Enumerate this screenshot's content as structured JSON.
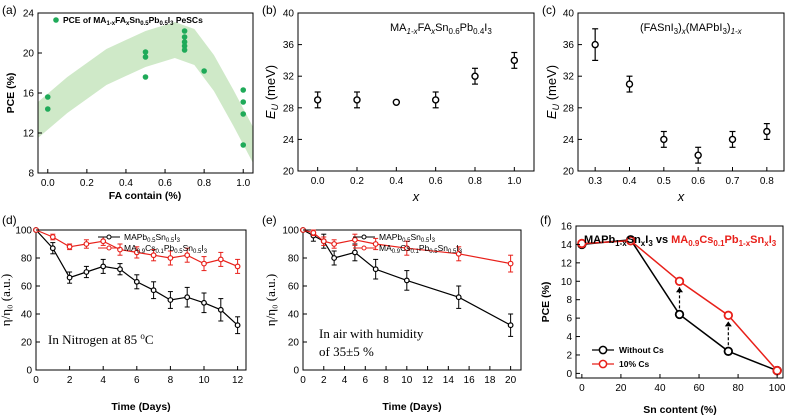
{
  "chart_data": [
    {
      "panel": "(a)",
      "type": "scatter",
      "title": "",
      "legend_label": "PCE of MA1-xFAxSn0.5Pb0.5I3 PeSCs",
      "legend_main": "PCE of MA",
      "legend_sub1": "1-x",
      "legend_mid1": "FA",
      "legend_sub2": "x",
      "legend_mid2": "Sn",
      "legend_sub3": "0.5",
      "legend_mid3": "Pb",
      "legend_sub4": "0.5",
      "legend_mid4": "I",
      "legend_sub5": "3",
      "legend_end": " PeSCs",
      "xlabel": "FA contain (%)",
      "ylabel": "PCE (%)",
      "xlim": [
        -0.05,
        1.05
      ],
      "ylim": [
        8,
        24
      ],
      "xticks": [
        "0.0",
        "0.2",
        "0.4",
        "0.6",
        "0.8",
        "1.0"
      ],
      "yticks": [
        "8",
        "12",
        "16",
        "20",
        "24"
      ],
      "color": "#1faa59",
      "band_color": "#cfe9c8",
      "points": [
        {
          "x": 0.0,
          "y": 15.6
        },
        {
          "x": 0.0,
          "y": 14.4
        },
        {
          "x": 0.5,
          "y": 20.1
        },
        {
          "x": 0.5,
          "y": 19.6
        },
        {
          "x": 0.5,
          "y": 17.6
        },
        {
          "x": 0.7,
          "y": 22.2
        },
        {
          "x": 0.7,
          "y": 21.6
        },
        {
          "x": 0.7,
          "y": 21.1
        },
        {
          "x": 0.7,
          "y": 20.7
        },
        {
          "x": 0.7,
          "y": 20.3
        },
        {
          "x": 0.8,
          "y": 18.2
        },
        {
          "x": 1.0,
          "y": 16.3
        },
        {
          "x": 1.0,
          "y": 15.1
        },
        {
          "x": 1.0,
          "y": 13.9
        },
        {
          "x": 1.0,
          "y": 10.8
        }
      ],
      "band_center": [
        {
          "x": -0.05,
          "y": 13.3
        },
        {
          "x": 0.1,
          "y": 15.8
        },
        {
          "x": 0.3,
          "y": 18.6
        },
        {
          "x": 0.5,
          "y": 20.4
        },
        {
          "x": 0.65,
          "y": 21.3
        },
        {
          "x": 0.75,
          "y": 20.6
        },
        {
          "x": 0.85,
          "y": 18.0
        },
        {
          "x": 0.95,
          "y": 14.5
        },
        {
          "x": 1.05,
          "y": 10.8
        }
      ],
      "band_halfwidth": 1.8
    },
    {
      "panel": "(b)",
      "type": "scatter",
      "title": "MA1-xFAxSn0.6Pb0.4I3",
      "title_main": "MA",
      "title_sub1": "1-x",
      "title_mid1": "FA",
      "title_sub2": "x",
      "title_mid2": "Sn",
      "title_sub3": "0.6",
      "title_mid3": "Pb",
      "title_sub4": "0.4",
      "title_mid4": "I",
      "title_sub5": "3",
      "xlabel": "x",
      "ylabel_main": "E",
      "ylabel_sub": "U",
      "ylabel_unit": " (meV)",
      "xlim": [
        -0.1,
        1.1
      ],
      "ylim": [
        20,
        40
      ],
      "xticks": [
        "0.0",
        "0.2",
        "0.4",
        "0.6",
        "0.8",
        "1.0"
      ],
      "yticks": [
        "20",
        "24",
        "28",
        "32",
        "36",
        "40"
      ],
      "points": [
        {
          "x": 0.0,
          "y": 29.0,
          "err": 1.0
        },
        {
          "x": 0.2,
          "y": 29.0,
          "err": 1.0
        },
        {
          "x": 0.4,
          "y": 28.7,
          "err": 0
        },
        {
          "x": 0.6,
          "y": 29.0,
          "err": 1.0
        },
        {
          "x": 0.8,
          "y": 32.0,
          "err": 1.0
        },
        {
          "x": 1.0,
          "y": 34.0,
          "err": 1.0
        }
      ]
    },
    {
      "panel": "(c)",
      "type": "scatter",
      "title": "(FASnI3)x(MAPbI3)1-x",
      "title_main": "(FASnI",
      "title_sub1": "3",
      "title_mid1": ")",
      "title_sub2": "x",
      "title_mid2": "(MAPbI",
      "title_sub3": "3",
      "title_mid3": ")",
      "title_sub4": "1-x",
      "xlabel": "x",
      "ylabel_main": "E",
      "ylabel_sub": "U",
      "ylabel_unit": " (meV)",
      "xlim": [
        0.25,
        0.85
      ],
      "ylim": [
        20,
        40
      ],
      "xticks": [
        "0.3",
        "0.4",
        "0.5",
        "0.6",
        "0.7",
        "0.8"
      ],
      "yticks": [
        "20",
        "24",
        "28",
        "32",
        "36",
        "40"
      ],
      "points": [
        {
          "x": 0.3,
          "y": 36.0,
          "err": 2.0
        },
        {
          "x": 0.4,
          "y": 31.0,
          "err": 1.0
        },
        {
          "x": 0.5,
          "y": 24.0,
          "err": 1.0
        },
        {
          "x": 0.6,
          "y": 22.0,
          "err": 1.0
        },
        {
          "x": 0.7,
          "y": 24.0,
          "err": 1.0
        },
        {
          "x": 0.8,
          "y": 25.0,
          "err": 1.0
        }
      ]
    },
    {
      "panel": "(d)",
      "type": "line",
      "xlabel": "Time (Days)",
      "ylabel": "η/η₀ (a.u.)",
      "xlim": [
        0,
        12.5
      ],
      "ylim": [
        0,
        100
      ],
      "xticks": [
        "0",
        "2",
        "4",
        "6",
        "8",
        "10",
        "12"
      ],
      "yticks": [
        "0",
        "20",
        "40",
        "60",
        "80",
        "100"
      ],
      "annotation": "In Nitrogen at 85 °C",
      "annotation_main": "In Nitrogen at 85 ",
      "annotation_sup": "o",
      "annotation_end": "C",
      "series": [
        {
          "name": "MAPb0.5Sn0.5I3",
          "legend_main": "MAPb",
          "legend_sub1": "0.5",
          "legend_mid1": "Sn",
          "legend_sub2": "0.5",
          "legend_mid2": "I",
          "legend_sub3": "3",
          "color": "#000000",
          "x": [
            0,
            1,
            2,
            3,
            4,
            5,
            6,
            7,
            8,
            9,
            10,
            11,
            12
          ],
          "y": [
            100,
            87,
            66,
            70,
            74,
            72,
            63,
            57,
            50,
            52,
            48,
            43,
            32
          ],
          "err": [
            0,
            4,
            4,
            4,
            5,
            4,
            5,
            6,
            6,
            7,
            7,
            8,
            6
          ]
        },
        {
          "name": "MA0.9Cs0.1Pb0.5Sn0.5I3",
          "legend_main": "MA",
          "legend_sub1": "0.9",
          "legend_mid1": "Cs",
          "legend_sub2": "0.1",
          "legend_mid2": "Pb",
          "legend_sub3": "0.5",
          "legend_mid3": "Sn",
          "legend_sub4": "0.5",
          "legend_mid4": "I",
          "legend_sub5": "3",
          "color": "#e8201a",
          "x": [
            0,
            1,
            2,
            3,
            4,
            5,
            6,
            7,
            8,
            9,
            10,
            11,
            12
          ],
          "y": [
            100,
            95,
            88,
            90,
            92,
            86,
            84,
            82,
            80,
            82,
            76,
            79,
            74
          ],
          "err": [
            0,
            2,
            2,
            3,
            3,
            4,
            4,
            4,
            5,
            5,
            5,
            5,
            5
          ]
        }
      ]
    },
    {
      "panel": "(e)",
      "type": "line",
      "xlabel": "Time (Days)",
      "ylabel": "η/η₀ (a.u.)",
      "xlim": [
        0,
        21
      ],
      "ylim": [
        0,
        100
      ],
      "xticks": [
        "0",
        "2",
        "4",
        "6",
        "8",
        "10",
        "12",
        "14",
        "16",
        "18",
        "20"
      ],
      "yticks": [
        "0",
        "20",
        "40",
        "60",
        "80",
        "100"
      ],
      "annotation_line1": "In air with humidity",
      "annotation_line2": "of 35±5 %",
      "series": [
        {
          "name": "MAPb0.5Sn0.5I3",
          "legend_main": "MAPb",
          "legend_sub1": "0.5",
          "legend_mid1": "Sn",
          "legend_sub2": "0.5",
          "legend_mid2": "I",
          "legend_sub3": "3",
          "color": "#000000",
          "x": [
            0,
            1,
            2,
            3,
            5,
            7,
            10,
            15,
            20
          ],
          "y": [
            100,
            96,
            92,
            80,
            84,
            72,
            64,
            52,
            32
          ],
          "err": [
            0,
            4,
            5,
            5,
            6,
            7,
            7,
            8,
            8
          ]
        },
        {
          "name": "MA0.9Cs0.1Pb0.5Sn0.5I3",
          "legend_main": "MA",
          "legend_sub1": "0.9",
          "legend_mid1": "Cs",
          "legend_sub2": "0.1",
          "legend_mid2": "Pb",
          "legend_sub3": "0.5",
          "legend_mid3": "Sn",
          "legend_sub4": "0.5",
          "legend_mid4": "I",
          "legend_sub5": "3",
          "color": "#e8201a",
          "x": [
            0,
            1,
            2,
            3,
            5,
            7,
            10,
            15,
            20
          ],
          "y": [
            100,
            98,
            92,
            90,
            93,
            90,
            87,
            83,
            76
          ],
          "err": [
            0,
            2,
            3,
            3,
            4,
            4,
            5,
            5,
            6
          ]
        }
      ]
    },
    {
      "panel": "(f)",
      "type": "line",
      "title": "MAPb1-xSnxI3 vs MA0.9Cs0.1Pb1-xSnxI3",
      "title_a_main": "MAPb",
      "title_a_sub1": "1-x",
      "title_a_mid1": "Sn",
      "title_a_sub2": "x",
      "title_a_mid2": "I",
      "title_a_sub3": "3",
      "title_vs": " vs ",
      "title_b_main": "MA",
      "title_b_sub1": "0.9",
      "title_b_mid1": "Cs",
      "title_b_sub2": "0.1",
      "title_b_mid2": "Pb",
      "title_b_sub3": "1-x",
      "title_b_mid3": "Sn",
      "title_b_sub4": "x",
      "title_b_mid4": "I",
      "title_b_sub5": "3",
      "xlabel": "Sn content (%)",
      "ylabel": "PCE (%)",
      "xlim": [
        -3,
        103
      ],
      "ylim": [
        -0.5,
        16
      ],
      "xticks": [
        "0",
        "20",
        "40",
        "60",
        "80",
        "100"
      ],
      "yticks": [
        "0",
        "2",
        "4",
        "6",
        "8",
        "10",
        "12",
        "14",
        "16"
      ],
      "series": [
        {
          "name": "Without Cs",
          "color": "#000000",
          "x": [
            0,
            25,
            50,
            75,
            100
          ],
          "y": [
            14.0,
            14.5,
            6.4,
            2.4,
            0.3
          ]
        },
        {
          "name": "10% Cs",
          "color": "#e8201a",
          "x": [
            0,
            25,
            50,
            75,
            100
          ],
          "y": [
            14.1,
            14.4,
            10.0,
            6.3,
            0.3
          ]
        }
      ],
      "arrows": [
        {
          "x": 50,
          "from": 6.4,
          "to": 10.0
        },
        {
          "x": 75,
          "from": 2.4,
          "to": 6.3
        }
      ]
    }
  ]
}
